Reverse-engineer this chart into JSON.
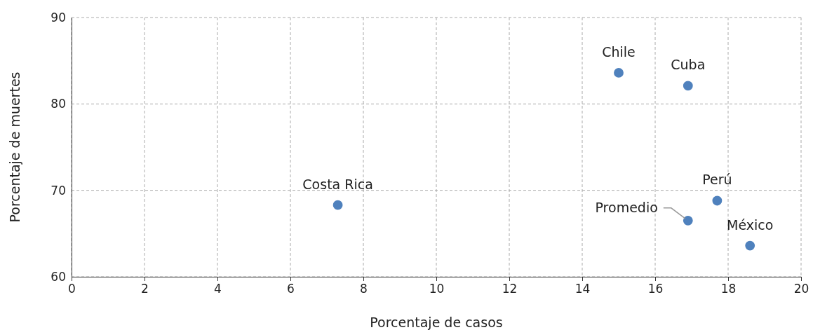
{
  "chart_data": {
    "type": "scatter",
    "xlabel": "Porcentaje de casos",
    "ylabel": "Porcentaje de muertes",
    "x": [
      7.3,
      15.0,
      16.9,
      17.7,
      16.9,
      18.6
    ],
    "values": [
      68.3,
      83.6,
      82.1,
      68.8,
      66.5,
      63.6
    ],
    "color": "#4f81bd",
    "marker": "circle",
    "xlim": [
      0,
      20
    ],
    "xticks": [
      0,
      2,
      4,
      6,
      8,
      10,
      12,
      14,
      16,
      18,
      20
    ],
    "ylim": [
      60,
      90
    ],
    "yticks": [
      60,
      70,
      80,
      90
    ],
    "grid": true,
    "annotations": [
      {
        "text": "Costa Rica",
        "x": 7.3,
        "y": 68.3
      },
      {
        "text": "Chile",
        "x": 15.0,
        "y": 83.6
      },
      {
        "text": "Cuba",
        "x": 16.9,
        "y": 82.1
      },
      {
        "text": "Perú",
        "x": 17.7,
        "y": 68.8
      },
      {
        "text": "Promedio",
        "x": 16.9,
        "y": 66.5
      },
      {
        "text": "México",
        "x": 18.6,
        "y": 63.6
      }
    ]
  }
}
